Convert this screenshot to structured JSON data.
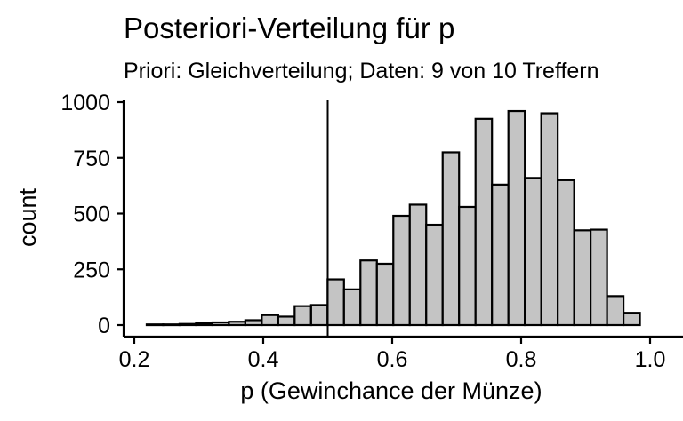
{
  "chart_data": {
    "type": "bar",
    "title": "Posteriori-Verteilung für p",
    "subtitle": "Priori: Gleichverteilung; Daten: 9 von 10 Treffern",
    "xlabel": "p (Gewinchance der Münze)",
    "ylabel": "count",
    "xlim": [
      0.2,
      1.0
    ],
    "ylim": [
      0,
      1000
    ],
    "xticks": [
      0.2,
      0.4,
      0.6,
      0.8,
      1.0
    ],
    "xtick_labels": [
      "0.2",
      "0.4",
      "0.6",
      "0.8",
      "1.0"
    ],
    "yticks": [
      0,
      250,
      500,
      750,
      1000
    ],
    "ytick_labels": [
      "0",
      "250",
      "500",
      "750",
      "1000"
    ],
    "vline": 0.5,
    "grid": false,
    "bin_width": 0.0255,
    "bin_centers": [
      0.232,
      0.2575,
      0.283,
      0.3085,
      0.334,
      0.3595,
      0.385,
      0.4105,
      0.436,
      0.4615,
      0.487,
      0.5125,
      0.538,
      0.5635,
      0.589,
      0.6145,
      0.64,
      0.6655,
      0.691,
      0.7165,
      0.742,
      0.7675,
      0.793,
      0.8185,
      0.844,
      0.8695,
      0.895,
      0.9205,
      0.946,
      0.9715
    ],
    "values": [
      3,
      3,
      5,
      8,
      12,
      15,
      22,
      45,
      38,
      85,
      90,
      205,
      160,
      290,
      275,
      490,
      540,
      450,
      775,
      530,
      925,
      630,
      960,
      660,
      950,
      650,
      425,
      428,
      130,
      55
    ],
    "colors": {
      "bar_fill": "#c4c4c4",
      "bar_stroke": "#000000"
    }
  }
}
